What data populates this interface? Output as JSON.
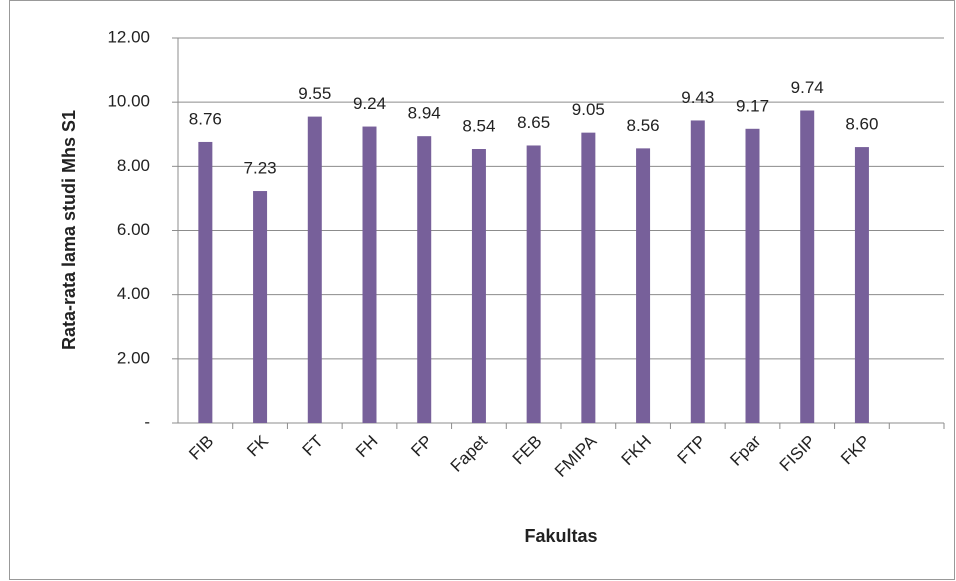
{
  "chart_data": {
    "type": "bar",
    "xlabel": "Fakultas",
    "ylabel": "Rata-rata lama studi  Mhs S1",
    "categories": [
      "FIB",
      "FK",
      "FT",
      "FH",
      "FP",
      "Fapet",
      "FEB",
      "FMIPA",
      "FKH",
      "FTP",
      "Fpar",
      "FISIP",
      "FKP",
      null
    ],
    "values": [
      8.76,
      7.23,
      9.55,
      9.24,
      8.94,
      8.54,
      8.65,
      9.05,
      8.56,
      9.43,
      9.17,
      9.74,
      8.6,
      null
    ],
    "value_labels": [
      "8.76",
      "7.23",
      "9.55",
      "9.24",
      "8.94",
      "8.54",
      "8.65",
      "9.05",
      "8.56",
      "9.43",
      "9.17",
      "9.74",
      "8.60",
      null
    ],
    "color": "#77609a",
    "ylim": [
      0,
      12
    ],
    "yticks": [
      {
        "value": 0,
        "label": "-"
      },
      {
        "value": 2,
        "label": "2.00"
      },
      {
        "value": 4,
        "label": "4.00"
      },
      {
        "value": 6,
        "label": "6.00"
      },
      {
        "value": 8,
        "label": "8.00"
      },
      {
        "value": 10,
        "label": "10.00"
      },
      {
        "value": 12,
        "label": "12.00"
      }
    ],
    "grid": true
  }
}
